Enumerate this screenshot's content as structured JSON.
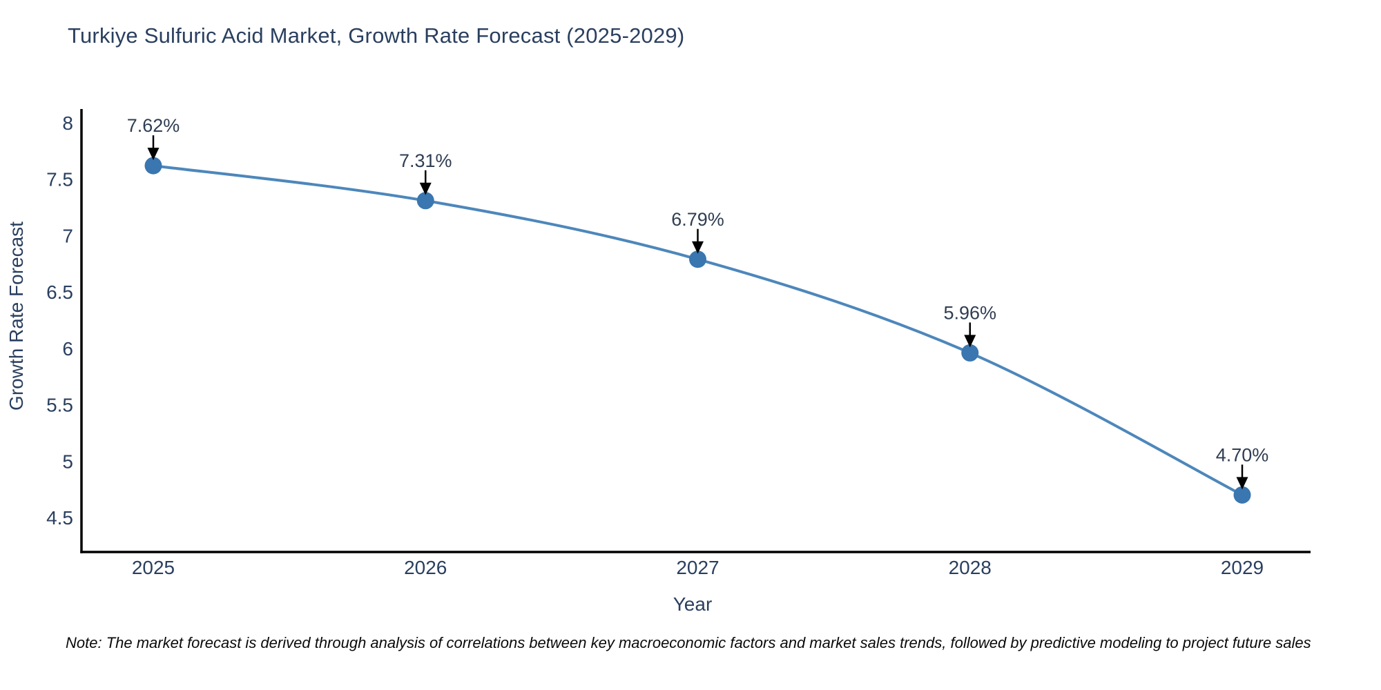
{
  "title": "Turkiye Sulfuric Acid Market, Growth Rate Forecast (2025-2029)",
  "note": "Note: The market forecast is derived through analysis of correlations between key macroeconomic factors and market sales trends, followed by predictive modeling to project future sales",
  "chart_data": {
    "type": "line",
    "title": "Turkiye Sulfuric Acid Market, Growth Rate Forecast (2025-2029)",
    "xlabel": "Year",
    "ylabel": "Growth Rate Forecast",
    "categories": [
      "2025",
      "2026",
      "2027",
      "2028",
      "2029"
    ],
    "values": [
      7.62,
      7.31,
      6.79,
      5.96,
      4.7
    ],
    "point_labels": [
      "7.62%",
      "7.31%",
      "6.79%",
      "5.96%",
      "4.70%"
    ],
    "ytick_labels": [
      "8",
      "7.5",
      "7",
      "6.5",
      "6",
      "5.5",
      "5",
      "4.5"
    ],
    "ytick_values": [
      8,
      7.5,
      7,
      6.5,
      6,
      5.5,
      5,
      4.5
    ],
    "ylim": [
      4.19,
      8.12
    ],
    "grid": false,
    "legend": "none",
    "marker": "circle",
    "line_style": "smooth-spline",
    "annotation_arrows": "down-to-point",
    "colors": {
      "line": "#4d87bb",
      "marker": "#3a76af",
      "arrow": "#000000",
      "axis": "#000000",
      "text": "#2a3f5f",
      "annotation_text": "#2f3d52",
      "note_text": "#0a0a0a",
      "background": "#ffffff"
    }
  }
}
